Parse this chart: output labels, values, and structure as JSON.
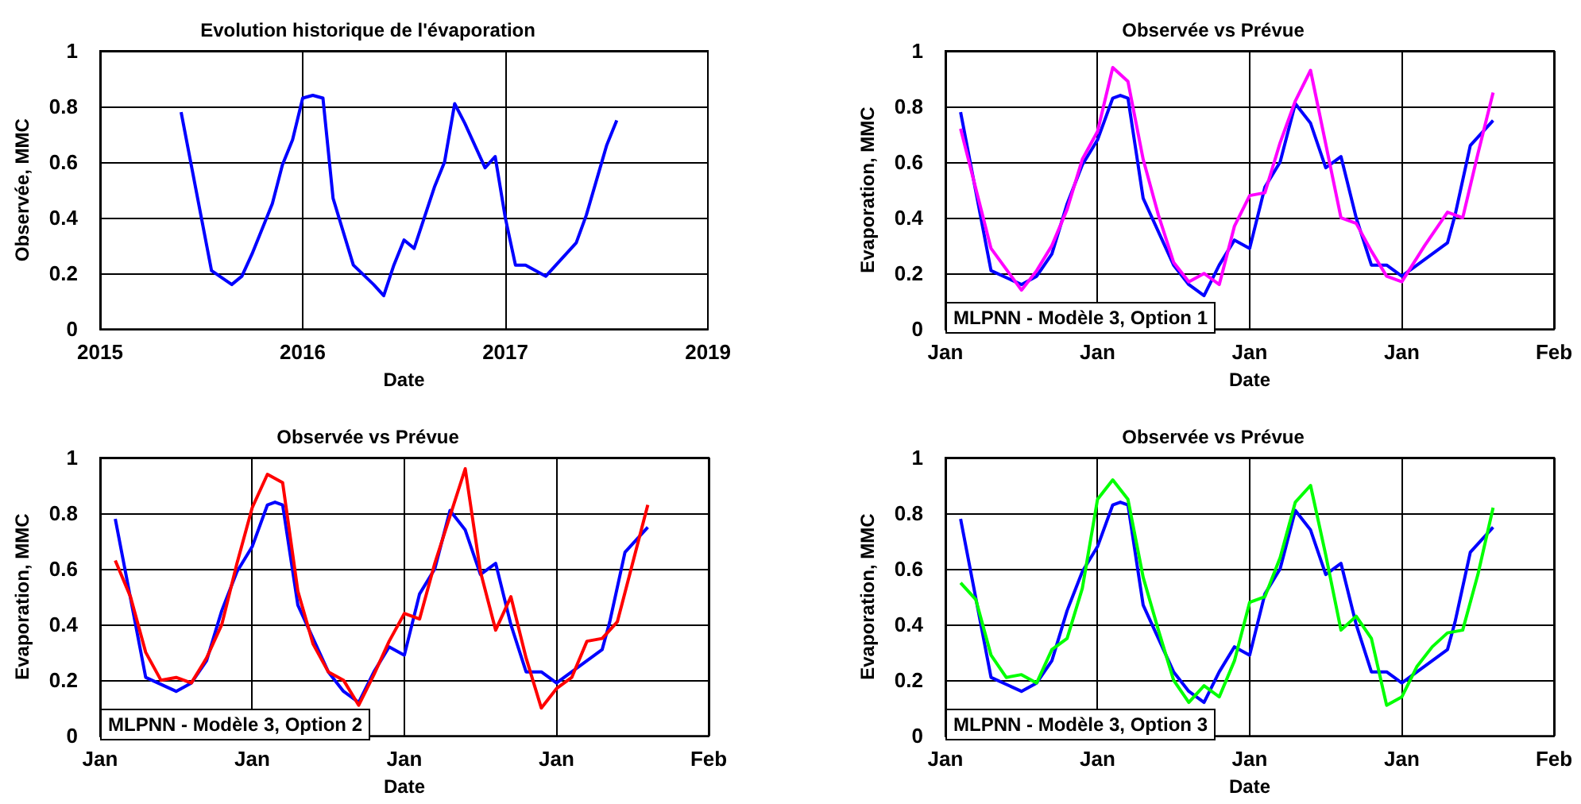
{
  "chart_data": [
    {
      "type": "line",
      "title": "Evolution historique de l'évaporation",
      "xlabel": "Date",
      "ylabel": "Observée, MMC",
      "ylim": [
        0,
        1
      ],
      "yticks": [
        0,
        0.2,
        0.4,
        0.6,
        0.8,
        1
      ],
      "grid": true,
      "categories": [
        "2015",
        null,
        null,
        null,
        null,
        null,
        null,
        null,
        null,
        null,
        null,
        null,
        null,
        null,
        null,
        null,
        null,
        null,
        null,
        null,
        "2016",
        null,
        null,
        null,
        null,
        null,
        null,
        null,
        null,
        null,
        null,
        null,
        null,
        null,
        null,
        null,
        null,
        null,
        null,
        null,
        "2017",
        null,
        null,
        null,
        null,
        null,
        null,
        null,
        null,
        null,
        null,
        null,
        null,
        null,
        null,
        null,
        null,
        null,
        null,
        null,
        "2019"
      ],
      "series": [
        {
          "color": "#0000ff",
          "values": [
            null,
            null,
            null,
            null,
            null,
            null,
            null,
            null,
            0.78,
            null,
            null,
            0.21,
            null,
            0.16,
            0.19,
            0.27,
            null,
            0.45,
            0.59,
            0.68,
            0.83,
            0.84,
            0.83,
            0.47,
            0.35,
            0.23,
            null,
            0.16,
            0.12,
            0.23,
            0.32,
            0.29,
            null,
            0.51,
            0.6,
            0.81,
            0.74,
            null,
            0.58,
            0.62,
            0.4,
            0.23,
            0.23,
            null,
            0.19,
            0.23,
            null,
            0.31,
            0.41,
            null,
            0.66,
            0.75,
            null,
            null,
            null,
            null,
            null,
            null,
            null,
            null,
            null
          ]
        }
      ]
    },
    {
      "type": "line",
      "title": "Observée vs Prévue",
      "xlabel": "Date",
      "ylabel": "Evaporation, MMC",
      "ylim": [
        0,
        1
      ],
      "yticks": [
        0,
        0.2,
        0.4,
        0.6,
        0.8,
        1
      ],
      "grid": true,
      "annotations": [
        "MLPNN - Modèle 3, Option 1"
      ],
      "categories": [
        "Jan",
        null,
        null,
        null,
        null,
        null,
        null,
        null,
        null,
        null,
        null,
        null,
        null,
        null,
        null,
        null,
        null,
        null,
        null,
        null,
        "Jan",
        null,
        null,
        null,
        null,
        null,
        null,
        null,
        null,
        null,
        null,
        null,
        null,
        null,
        null,
        null,
        null,
        null,
        null,
        null,
        "Jan",
        null,
        null,
        null,
        null,
        null,
        null,
        null,
        null,
        null,
        null,
        null,
        null,
        null,
        null,
        null,
        null,
        null,
        null,
        null,
        "Jan",
        null,
        null,
        null,
        null,
        null,
        null,
        null,
        null,
        null,
        null,
        null,
        null,
        null,
        null,
        null,
        null,
        null,
        null,
        null,
        "Feb"
      ],
      "series": [
        {
          "color": "#0000ff",
          "values": [
            null,
            null,
            0.78,
            null,
            null,
            null,
            0.21,
            null,
            null,
            null,
            0.16,
            null,
            0.19,
            null,
            0.27,
            null,
            0.45,
            null,
            0.59,
            null,
            0.68,
            null,
            0.83,
            0.84,
            0.83,
            null,
            0.47,
            null,
            0.35,
            null,
            0.23,
            null,
            0.16,
            null,
            0.12,
            null,
            0.23,
            null,
            0.32,
            null,
            0.29,
            null,
            0.51,
            null,
            0.6,
            null,
            0.81,
            null,
            0.74,
            null,
            0.58,
            null,
            0.62,
            null,
            0.4,
            null,
            0.23,
            null,
            0.23,
            null,
            0.19,
            null,
            0.23,
            null,
            null,
            null,
            0.31,
            0.41,
            null,
            0.66,
            null,
            null,
            0.75,
            null,
            null,
            null,
            null,
            null,
            null,
            null,
            null
          ]
        },
        {
          "color": "#ff00ff",
          "values": [
            null,
            null,
            0.72,
            null,
            null,
            null,
            0.29,
            null,
            null,
            null,
            0.14,
            null,
            0.21,
            null,
            0.3,
            null,
            0.43,
            null,
            0.61,
            null,
            0.71,
            null,
            0.94,
            null,
            0.89,
            null,
            0.61,
            null,
            0.41,
            null,
            0.24,
            null,
            0.17,
            null,
            0.2,
            null,
            0.16,
            null,
            0.37,
            null,
            0.48,
            null,
            0.49,
            null,
            0.67,
            null,
            0.82,
            null,
            0.93,
            null,
            null,
            null,
            0.4,
            null,
            0.38,
            null,
            0.28,
            null,
            0.19,
            null,
            0.17,
            null,
            null,
            0.3,
            null,
            null,
            0.42,
            null,
            0.4,
            null,
            0.63,
            null,
            0.85,
            null,
            null,
            null,
            null,
            null,
            null,
            null,
            null
          ]
        }
      ]
    },
    {
      "type": "line",
      "title": "Observée vs Prévue",
      "xlabel": "Date",
      "ylabel": "Evaporation, MMC",
      "ylim": [
        0,
        1
      ],
      "yticks": [
        0,
        0.2,
        0.4,
        0.6,
        0.8,
        1
      ],
      "grid": true,
      "annotations": [
        "MLPNN - Modèle 3, Option 2"
      ],
      "categories": [
        "Jan",
        null,
        null,
        null,
        null,
        null,
        null,
        null,
        null,
        null,
        null,
        null,
        null,
        null,
        null,
        null,
        null,
        null,
        null,
        null,
        "Jan",
        null,
        null,
        null,
        null,
        null,
        null,
        null,
        null,
        null,
        null,
        null,
        null,
        null,
        null,
        null,
        null,
        null,
        null,
        null,
        "Jan",
        null,
        null,
        null,
        null,
        null,
        null,
        null,
        null,
        null,
        null,
        null,
        null,
        null,
        null,
        null,
        null,
        null,
        null,
        null,
        "Jan",
        null,
        null,
        null,
        null,
        null,
        null,
        null,
        null,
        null,
        null,
        null,
        null,
        null,
        null,
        null,
        null,
        null,
        null,
        null,
        "Feb"
      ],
      "series": [
        {
          "color": "#0000ff",
          "values": [
            null,
            null,
            0.78,
            null,
            null,
            null,
            0.21,
            null,
            null,
            null,
            0.16,
            null,
            0.19,
            null,
            0.27,
            null,
            0.45,
            null,
            0.59,
            null,
            0.68,
            null,
            0.83,
            0.84,
            0.83,
            null,
            0.47,
            null,
            0.35,
            null,
            0.23,
            null,
            0.16,
            null,
            0.12,
            null,
            0.23,
            null,
            0.32,
            null,
            0.29,
            null,
            0.51,
            null,
            0.6,
            null,
            0.81,
            null,
            0.74,
            null,
            0.58,
            null,
            0.62,
            null,
            0.4,
            null,
            0.23,
            null,
            0.23,
            null,
            0.19,
            null,
            0.23,
            null,
            null,
            null,
            0.31,
            0.41,
            null,
            0.66,
            null,
            null,
            0.75,
            null,
            null,
            null,
            null,
            null,
            null,
            null,
            null
          ]
        },
        {
          "color": "#ff0000",
          "values": [
            null,
            null,
            0.63,
            null,
            0.5,
            null,
            0.3,
            null,
            0.2,
            null,
            0.21,
            null,
            0.19,
            null,
            0.28,
            null,
            0.4,
            null,
            0.62,
            null,
            0.82,
            null,
            0.94,
            null,
            0.91,
            null,
            0.52,
            null,
            0.33,
            null,
            0.23,
            null,
            0.2,
            null,
            0.11,
            null,
            0.22,
            null,
            0.34,
            null,
            0.44,
            null,
            0.42,
            null,
            0.62,
            null,
            0.79,
            null,
            0.96,
            null,
            0.59,
            null,
            0.38,
            null,
            0.5,
            null,
            0.28,
            null,
            0.1,
            null,
            0.17,
            null,
            0.21,
            null,
            0.34,
            null,
            0.35,
            null,
            0.41,
            null,
            0.62,
            null,
            0.83,
            null,
            null,
            null,
            null,
            null,
            null,
            null,
            null
          ]
        }
      ]
    },
    {
      "type": "line",
      "title": "Observée vs Prévue",
      "xlabel": "Date",
      "ylabel": "Evaporation, MMC",
      "ylim": [
        0,
        1
      ],
      "yticks": [
        0,
        0.2,
        0.4,
        0.6,
        0.8,
        1
      ],
      "grid": true,
      "annotations": [
        "MLPNN - Modèle 3, Option 3"
      ],
      "categories": [
        "Jan",
        null,
        null,
        null,
        null,
        null,
        null,
        null,
        null,
        null,
        null,
        null,
        null,
        null,
        null,
        null,
        null,
        null,
        null,
        null,
        "Jan",
        null,
        null,
        null,
        null,
        null,
        null,
        null,
        null,
        null,
        null,
        null,
        null,
        null,
        null,
        null,
        null,
        null,
        null,
        null,
        "Jan",
        null,
        null,
        null,
        null,
        null,
        null,
        null,
        null,
        null,
        null,
        null,
        null,
        null,
        null,
        null,
        null,
        null,
        null,
        null,
        "Jan",
        null,
        null,
        null,
        null,
        null,
        null,
        null,
        null,
        null,
        null,
        null,
        null,
        null,
        null,
        null,
        null,
        null,
        null,
        null,
        "Feb"
      ],
      "series": [
        {
          "color": "#0000ff",
          "values": [
            null,
            null,
            0.78,
            null,
            null,
            null,
            0.21,
            null,
            null,
            null,
            0.16,
            null,
            0.19,
            null,
            0.27,
            null,
            0.45,
            null,
            0.59,
            null,
            0.68,
            null,
            0.83,
            0.84,
            0.83,
            null,
            0.47,
            null,
            0.35,
            null,
            0.23,
            null,
            0.16,
            null,
            0.12,
            null,
            0.23,
            null,
            0.32,
            null,
            0.29,
            null,
            0.51,
            null,
            0.6,
            null,
            0.81,
            null,
            0.74,
            null,
            0.58,
            null,
            0.62,
            null,
            0.4,
            null,
            0.23,
            null,
            0.23,
            null,
            0.19,
            null,
            0.23,
            null,
            null,
            null,
            0.31,
            0.41,
            null,
            0.66,
            null,
            null,
            0.75,
            null,
            null,
            null,
            null,
            null,
            null,
            null,
            null
          ]
        },
        {
          "color": "#00ff00",
          "values": [
            null,
            null,
            0.55,
            null,
            0.49,
            null,
            0.29,
            null,
            0.21,
            null,
            0.22,
            null,
            0.19,
            null,
            0.31,
            null,
            0.35,
            null,
            0.53,
            null,
            0.85,
            null,
            0.92,
            null,
            0.85,
            null,
            0.57,
            null,
            0.38,
            null,
            0.2,
            null,
            0.12,
            null,
            0.18,
            null,
            0.14,
            null,
            0.27,
            null,
            0.48,
            null,
            0.5,
            null,
            0.64,
            null,
            0.84,
            null,
            0.9,
            null,
            0.65,
            null,
            0.38,
            null,
            0.43,
            null,
            0.35,
            null,
            0.11,
            null,
            0.14,
            null,
            0.25,
            null,
            0.32,
            null,
            0.37,
            null,
            0.38,
            null,
            0.58,
            null,
            0.82,
            null,
            null,
            null,
            null,
            null,
            null,
            null,
            null
          ]
        }
      ]
    }
  ]
}
